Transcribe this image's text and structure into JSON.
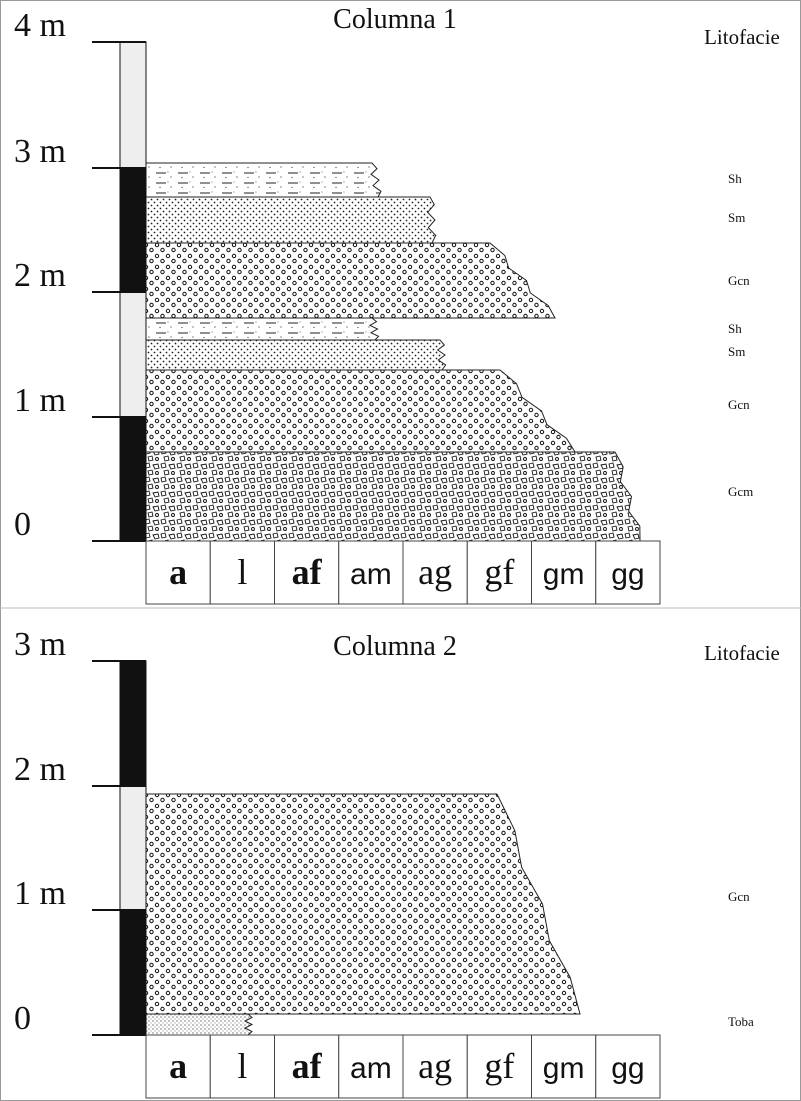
{
  "columns": [
    {
      "title": "Columna 1",
      "facies_header": "Litofacie",
      "scale_labels": [
        "4 m",
        "3 m",
        "2 m",
        "1 m",
        "0"
      ],
      "facies": [
        "Sh",
        "Sm",
        "Gcn",
        "Sh",
        "Sm",
        "Gcn",
        "Gcm"
      ],
      "grain_sizes": [
        "a",
        "l",
        "af",
        "am",
        "ag",
        "gf",
        "gm",
        "gg"
      ]
    },
    {
      "title": "Columna 2",
      "facies_header": "Litofacie",
      "scale_labels": [
        "3 m",
        "2 m",
        "1 m",
        "0"
      ],
      "facies": [
        "Gcn",
        "Toba"
      ],
      "grain_sizes": [
        "a",
        "l",
        "af",
        "am",
        "ag",
        "gf",
        "gm",
        "gg"
      ]
    }
  ]
}
